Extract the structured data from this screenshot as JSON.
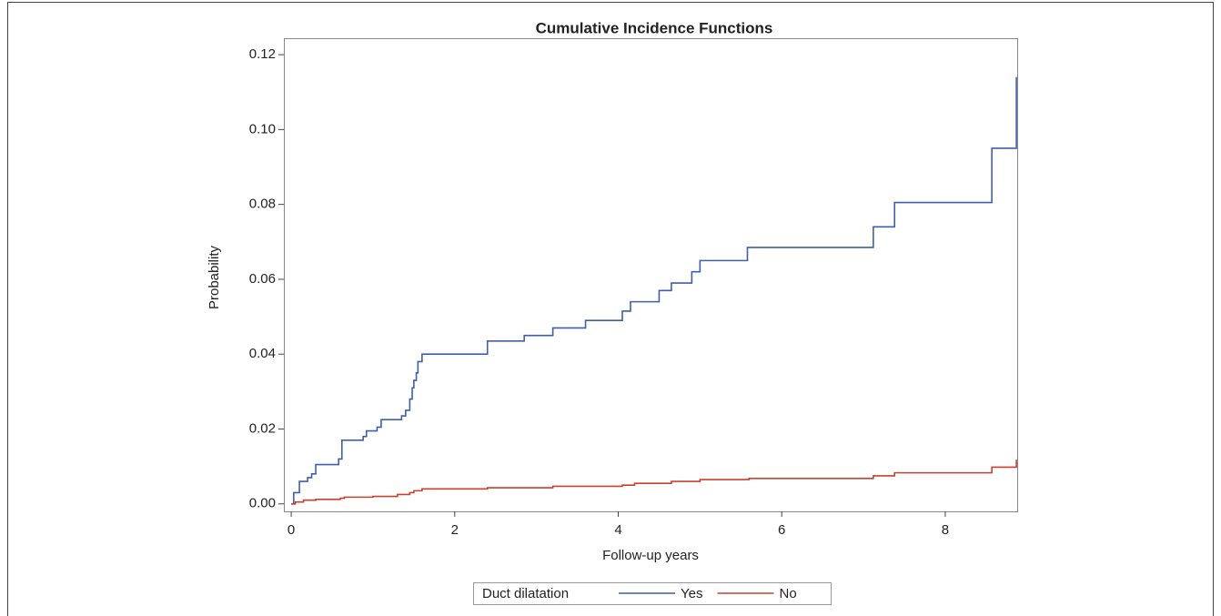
{
  "chart_data": {
    "type": "step",
    "title": "Cumulative Incidence Functions",
    "x_label": "Follow-up years",
    "y_label": "Probability",
    "legend_title": "Duct dilatation",
    "legend_position": "bottom",
    "xlim": [
      -0.09,
      8.88
    ],
    "xticks": [
      0,
      2,
      4,
      6,
      8
    ],
    "ylim": [
      -0.002,
      0.1244
    ],
    "yticks": [
      {
        "value": 0,
        "label": "0.00"
      },
      0.02,
      0.04,
      0.06,
      0.08,
      {
        "value": 0.1,
        "label": "0.10"
      },
      0.12
    ],
    "series": [
      {
        "name": "Yes",
        "color": "#3f5fa8",
        "x": [
          0,
          0.03,
          0.1,
          0.2,
          0.25,
          0.3,
          0.58,
          0.62,
          0.88,
          0.92,
          1.05,
          1.1,
          1.35,
          1.4,
          1.45,
          1.48,
          1.5,
          1.53,
          1.55,
          1.6,
          2.4,
          2.85,
          3.2,
          3.6,
          4.05,
          4.15,
          4.5,
          4.65,
          4.9,
          5.0,
          5.58,
          7.12,
          7.38,
          8.57,
          8.87
        ],
        "values": [
          0,
          0.003,
          0.006,
          0.007,
          0.008,
          0.0105,
          0.012,
          0.017,
          0.018,
          0.0195,
          0.0205,
          0.0225,
          0.0235,
          0.025,
          0.028,
          0.031,
          0.033,
          0.035,
          0.038,
          0.04,
          0.0435,
          0.045,
          0.047,
          0.049,
          0.0515,
          0.054,
          0.057,
          0.059,
          0.062,
          0.065,
          0.0685,
          0.074,
          0.0805,
          0.095,
          0.114
        ]
      },
      {
        "name": "No",
        "color": "#c8412f",
        "x": [
          0,
          0.05,
          0.15,
          0.3,
          0.6,
          0.65,
          1.0,
          1.3,
          1.45,
          1.5,
          1.6,
          2.4,
          3.2,
          4.05,
          4.2,
          4.65,
          5.0,
          5.6,
          7.12,
          7.38,
          8.57,
          8.87
        ],
        "values": [
          0,
          0.0005,
          0.001,
          0.0012,
          0.0015,
          0.0018,
          0.002,
          0.0025,
          0.003,
          0.0035,
          0.004,
          0.0043,
          0.0047,
          0.005,
          0.0055,
          0.006,
          0.0065,
          0.0068,
          0.0075,
          0.0083,
          0.0098,
          0.0118
        ]
      }
    ]
  }
}
